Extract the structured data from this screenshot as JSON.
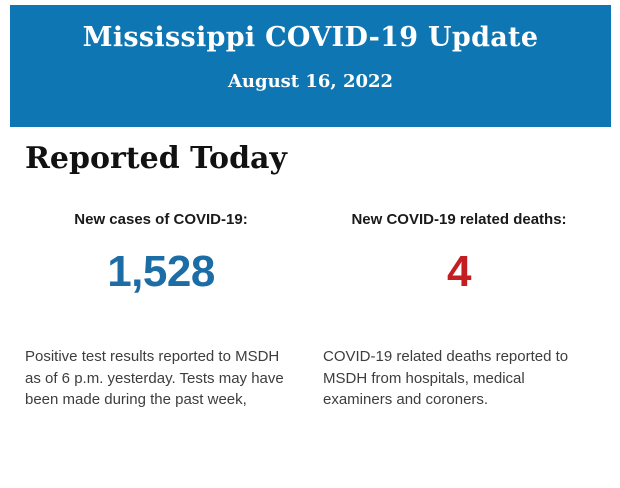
{
  "header": {
    "title": "Mississippi COVID-19 Update",
    "date": "August 16, 2022"
  },
  "section": {
    "heading": "Reported Today"
  },
  "stats": {
    "cases": {
      "label": "New cases of COVID-19:",
      "value": "1,528",
      "description": "Positive test results reported to MSDH as of 6 p.m. yesterday. Tests may have been made during the past week,"
    },
    "deaths": {
      "label": "New COVID-19 related deaths:",
      "value": "4",
      "description": "COVID-19 related deaths reported to MSDH from hospitals, medical examiners and coroners."
    }
  },
  "colors": {
    "header_bg": "#0e76b2",
    "cases_color": "#1c6da6",
    "deaths_color": "#c41e22"
  }
}
